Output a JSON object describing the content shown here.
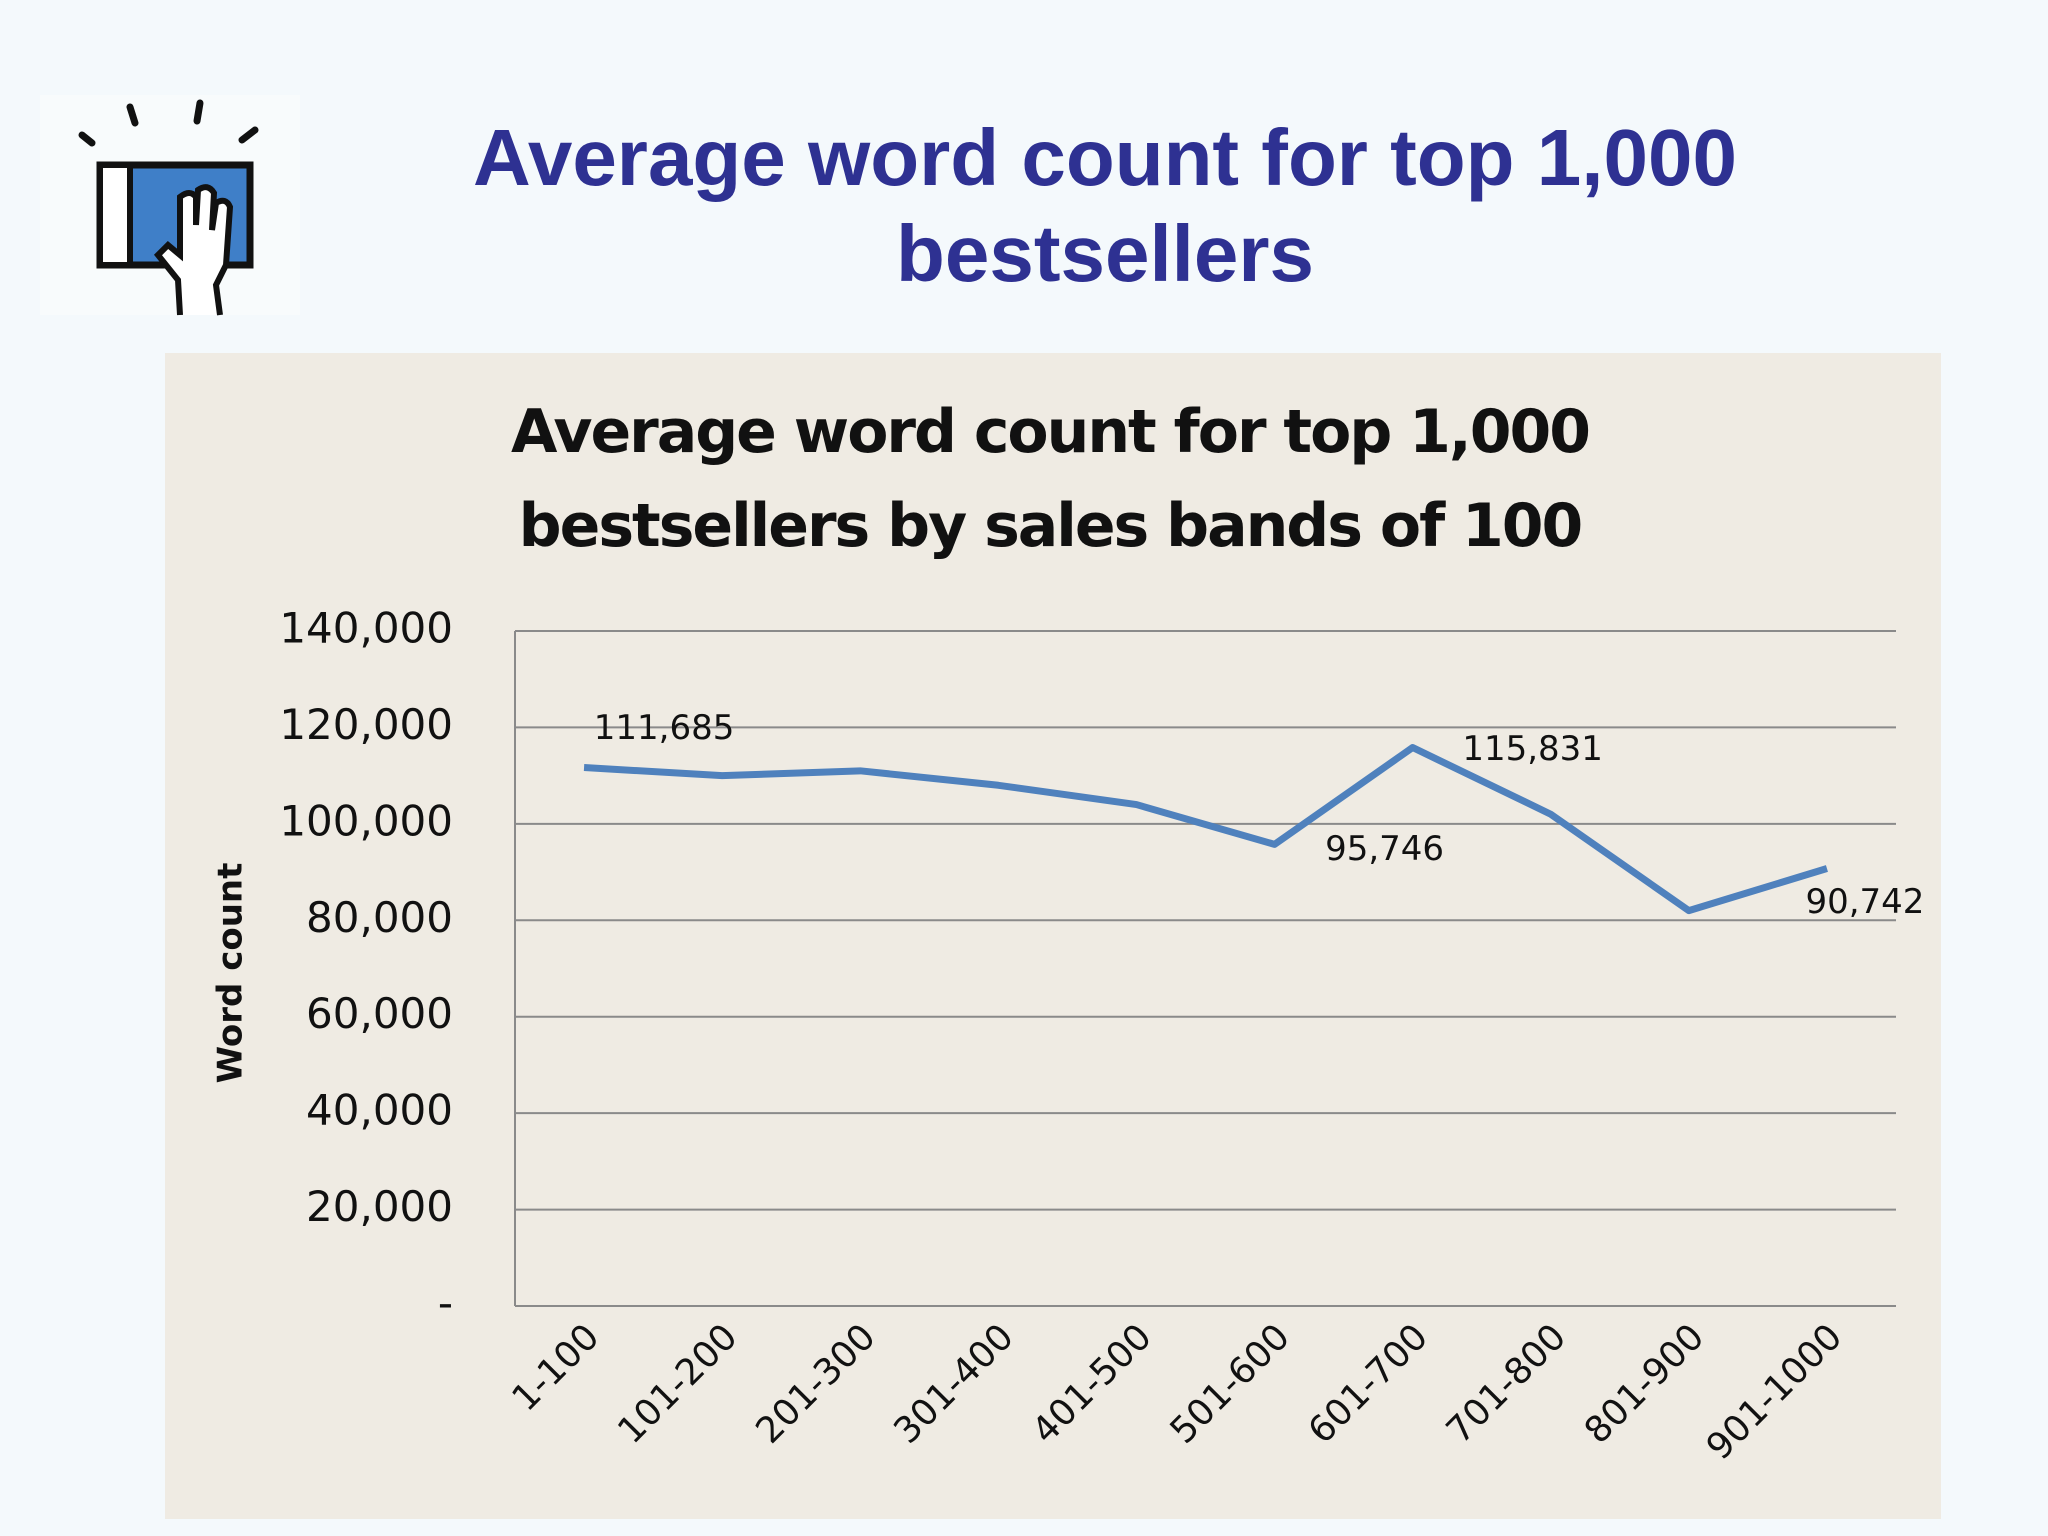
{
  "header": {
    "title": "Average word count for top 1,000 bestsellers"
  },
  "chart_data": {
    "type": "line",
    "title": "Average word count for top 1,000 bestsellers by sales bands of 100",
    "y_label": "Word count",
    "categories": [
      "1-100",
      "101-200",
      "201-300",
      "301-400",
      "401-500",
      "501-600",
      "601-700",
      "701-800",
      "801-900",
      "901-1000"
    ],
    "series": [
      {
        "name": "Word count",
        "color": "#4f81bd",
        "values": [
          111685,
          110000,
          111000,
          108000,
          104000,
          95746,
          115831,
          102000,
          82000,
          90742
        ],
        "value_labels": [
          "111,685",
          null,
          null,
          null,
          null,
          "95,746",
          "115,831",
          null,
          null,
          "90,742"
        ]
      }
    ],
    "ylim": [
      0,
      140000
    ],
    "yticks": [
      {
        "value": 0,
        "label": "-"
      },
      {
        "value": 20000,
        "label": "20,000"
      },
      {
        "value": 40000,
        "label": "40,000"
      },
      {
        "value": 60000,
        "label": "60,000"
      },
      {
        "value": 80000,
        "label": "80,000"
      },
      {
        "value": 100000,
        "label": "100,000"
      },
      {
        "value": 120000,
        "label": "120,000"
      },
      {
        "value": 140000,
        "label": "140,000"
      }
    ],
    "grid": true,
    "legend": false
  }
}
